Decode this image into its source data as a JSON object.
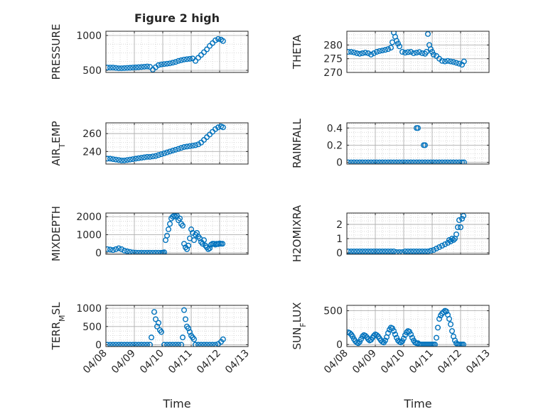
{
  "figure_title": "Figure 2 high",
  "colors": {
    "marker": "#0072BD",
    "axis": "#262626",
    "grid": "#b0b0b0",
    "background": "#ffffff"
  },
  "chart_data": [
    {
      "type": "scatter",
      "title": "Figure 2 high",
      "ylabel": "PRESSURE",
      "xlabel": "",
      "xlim": [
        0,
        5
      ],
      "ylim": [
        470,
        1060
      ],
      "yticks": [
        500,
        1000
      ],
      "grid": true,
      "xticklabels": [
        "04/08",
        "04/09",
        "04/10",
        "04/11",
        "04/12",
        "04/13"
      ],
      "x": [
        0.05,
        0.15,
        0.25,
        0.35,
        0.45,
        0.55,
        0.65,
        0.75,
        0.85,
        0.95,
        1.05,
        1.15,
        1.25,
        1.35,
        1.45,
        1.55,
        1.65,
        1.75,
        1.85,
        1.95,
        2.05,
        2.15,
        2.25,
        2.35,
        2.45,
        2.55,
        2.65,
        2.75,
        2.85,
        2.95,
        3.05,
        3.15,
        3.25,
        3.35,
        3.45,
        3.55,
        3.65,
        3.75,
        3.85,
        3.95,
        4.05,
        4.12
      ],
      "y": [
        540,
        540,
        540,
        535,
        530,
        530,
        532,
        535,
        537,
        540,
        542,
        545,
        548,
        552,
        555,
        550,
        510,
        545,
        575,
        585,
        590,
        595,
        600,
        610,
        620,
        635,
        645,
        655,
        660,
        665,
        670,
        635,
        680,
        720,
        760,
        800,
        850,
        890,
        930,
        950,
        940,
        920
      ]
    },
    {
      "type": "scatter",
      "title": "",
      "ylabel": "THETA",
      "xlabel": "",
      "xlim": [
        0,
        5
      ],
      "ylim": [
        270,
        285
      ],
      "yticks": [
        270,
        275,
        280
      ],
      "grid": true,
      "xticklabels": [
        "04/08",
        "04/09",
        "04/10",
        "04/11",
        "04/12",
        "04/13"
      ],
      "x": [
        0.05,
        0.15,
        0.25,
        0.35,
        0.45,
        0.55,
        0.65,
        0.75,
        0.85,
        0.95,
        1.05,
        1.15,
        1.25,
        1.35,
        1.45,
        1.55,
        1.6,
        1.65,
        1.7,
        1.75,
        1.8,
        1.85,
        1.95,
        2.05,
        2.15,
        2.25,
        2.35,
        2.45,
        2.55,
        2.65,
        2.75,
        2.8,
        2.85,
        2.9,
        2.95,
        3.0,
        3.05,
        3.15,
        3.25,
        3.35,
        3.45,
        3.55,
        3.65,
        3.75,
        3.85,
        3.95,
        4.05,
        4.12
      ],
      "y": [
        277.5,
        277.5,
        277.3,
        277.0,
        276.8,
        277.0,
        277.2,
        277.0,
        276.5,
        277.0,
        277.5,
        277.8,
        278.0,
        278.2,
        278.5,
        279.0,
        281.0,
        284.5,
        283.0,
        281.5,
        280.5,
        279.5,
        277.5,
        277.2,
        277.4,
        277.5,
        277.0,
        277.2,
        277.4,
        277.0,
        276.8,
        277.5,
        284.0,
        280.0,
        278.5,
        277.5,
        276.5,
        276.0,
        275.0,
        274.2,
        274.0,
        274.2,
        274.0,
        273.8,
        273.5,
        273.2,
        272.8,
        274.0
      ]
    },
    {
      "type": "scatter",
      "title": "",
      "ylabel": "AIR_TEMP",
      "xlabel": "",
      "xlim": [
        0,
        5
      ],
      "ylim": [
        226,
        272
      ],
      "yticks": [
        240,
        260
      ],
      "grid": true,
      "xticklabels": [
        "04/08",
        "04/09",
        "04/10",
        "04/11",
        "04/12",
        "04/13"
      ],
      "x": [
        0.05,
        0.15,
        0.25,
        0.35,
        0.45,
        0.55,
        0.65,
        0.75,
        0.85,
        0.95,
        1.05,
        1.15,
        1.25,
        1.35,
        1.45,
        1.55,
        1.65,
        1.75,
        1.85,
        1.95,
        2.05,
        2.15,
        2.25,
        2.35,
        2.45,
        2.55,
        2.65,
        2.75,
        2.85,
        2.95,
        3.05,
        3.15,
        3.25,
        3.35,
        3.45,
        3.55,
        3.65,
        3.75,
        3.85,
        3.95,
        4.05,
        4.12
      ],
      "y": [
        232,
        232,
        231.5,
        231,
        230.5,
        230,
        230,
        230.5,
        231,
        231.5,
        232,
        232.5,
        233,
        233.5,
        234,
        234,
        234.5,
        235,
        236,
        237,
        238,
        239,
        240,
        241,
        242,
        243,
        244,
        245,
        245.5,
        246,
        246.5,
        247,
        248,
        250,
        253,
        256,
        259,
        262,
        265,
        267,
        268,
        267
      ]
    },
    {
      "type": "scatter",
      "title": "",
      "ylabel": "RAINFALL",
      "xlabel": "",
      "xlim": [
        0,
        5
      ],
      "ylim": [
        -0.02,
        0.46
      ],
      "yticks": [
        0,
        0.2,
        0.4
      ],
      "grid": true,
      "xticklabels": [
        "04/08",
        "04/09",
        "04/10",
        "04/11",
        "04/12",
        "04/13"
      ],
      "x": [
        0.05,
        0.15,
        0.25,
        0.35,
        0.45,
        0.55,
        0.65,
        0.75,
        0.85,
        0.95,
        1.05,
        1.15,
        1.25,
        1.35,
        1.45,
        1.55,
        1.65,
        1.75,
        1.85,
        1.95,
        2.05,
        2.15,
        2.25,
        2.35,
        2.45,
        2.55,
        2.65,
        2.75,
        2.85,
        2.95,
        3.05,
        3.15,
        3.25,
        3.35,
        3.45,
        3.55,
        3.65,
        3.75,
        3.85,
        3.95,
        4.05,
        4.12,
        2.45,
        2.5,
        2.7,
        2.75
      ],
      "y": [
        0,
        0,
        0,
        0,
        0,
        0,
        0,
        0,
        0,
        0,
        0,
        0,
        0,
        0,
        0,
        0,
        0,
        0,
        0,
        0,
        0,
        0,
        0,
        0,
        0,
        0,
        0,
        0,
        0,
        0,
        0,
        0,
        0,
        0,
        0,
        0,
        0,
        0,
        0,
        0,
        0,
        0,
        0.4,
        0.4,
        0.2,
        0.2
      ]
    },
    {
      "type": "scatter",
      "title": "",
      "ylabel": "MIXDEPTH",
      "xlabel": "",
      "xlim": [
        0,
        5
      ],
      "ylim": [
        -80,
        2200
      ],
      "yticks": [
        0,
        1000,
        2000
      ],
      "grid": true,
      "xticklabels": [
        "04/08",
        "04/09",
        "04/10",
        "04/11",
        "04/12",
        "04/13"
      ],
      "x": [
        0.05,
        0.15,
        0.25,
        0.35,
        0.45,
        0.55,
        0.65,
        0.75,
        0.85,
        0.95,
        1.05,
        1.15,
        1.25,
        1.35,
        1.45,
        1.55,
        1.65,
        1.75,
        1.85,
        1.95,
        2.0,
        2.05,
        2.1,
        2.15,
        2.2,
        2.25,
        2.3,
        2.35,
        2.4,
        2.45,
        2.5,
        2.55,
        2.6,
        2.65,
        2.7,
        2.75,
        2.8,
        2.85,
        2.9,
        2.95,
        3.0,
        3.05,
        3.1,
        3.15,
        3.2,
        3.25,
        3.3,
        3.35,
        3.4,
        3.45,
        3.5,
        3.55,
        3.6,
        3.65,
        3.7,
        3.75,
        3.8,
        3.85,
        3.9,
        3.95,
        4.0,
        4.05,
        4.1
      ],
      "y": [
        200,
        180,
        150,
        200,
        250,
        200,
        120,
        80,
        50,
        20,
        10,
        5,
        5,
        5,
        5,
        5,
        5,
        5,
        5,
        5,
        10,
        30,
        700,
        950,
        1300,
        1600,
        1900,
        2000,
        2050,
        2000,
        2050,
        1800,
        1900,
        1600,
        1500,
        500,
        300,
        200,
        400,
        800,
        1300,
        1100,
        700,
        1000,
        1100,
        900,
        800,
        600,
        500,
        700,
        400,
        300,
        200,
        250,
        450,
        500,
        500,
        450,
        500,
        480,
        520,
        500,
        500
      ]
    },
    {
      "type": "scatter",
      "title": "",
      "ylabel": "H2OMIXRA",
      "xlabel": "",
      "xlim": [
        0,
        5
      ],
      "ylim": [
        -0.1,
        2.8
      ],
      "yticks": [
        0,
        1,
        2
      ],
      "grid": true,
      "xticklabels": [
        "04/08",
        "04/09",
        "04/10",
        "04/11",
        "04/12",
        "04/13"
      ],
      "x": [
        0.05,
        0.15,
        0.25,
        0.35,
        0.45,
        0.55,
        0.65,
        0.75,
        0.85,
        0.95,
        1.05,
        1.15,
        1.25,
        1.35,
        1.45,
        1.55,
        1.65,
        1.75,
        1.85,
        1.95,
        2.05,
        2.15,
        2.25,
        2.35,
        2.45,
        2.55,
        2.65,
        2.75,
        2.85,
        2.95,
        3.05,
        3.15,
        3.25,
        3.35,
        3.45,
        3.55,
        3.6,
        3.65,
        3.7,
        3.75,
        3.8,
        3.85,
        3.9,
        3.95,
        4.0,
        4.05,
        4.1
      ],
      "y": [
        0.1,
        0.1,
        0.1,
        0.1,
        0.1,
        0.1,
        0.1,
        0.1,
        0.1,
        0.1,
        0.1,
        0.1,
        0.1,
        0.1,
        0.1,
        0.1,
        0.1,
        0.05,
        0.05,
        0.05,
        0.1,
        0.1,
        0.1,
        0.1,
        0.1,
        0.1,
        0.1,
        0.1,
        0.1,
        0.15,
        0.2,
        0.3,
        0.4,
        0.5,
        0.6,
        0.7,
        0.9,
        0.8,
        1.0,
        0.9,
        1.0,
        1.3,
        1.8,
        2.3,
        1.8,
        2.4,
        2.6
      ]
    },
    {
      "type": "scatter",
      "title": "",
      "ylabel": "TERR_MSL",
      "xlabel": "Time",
      "xlim": [
        0,
        5
      ],
      "ylim": [
        -50,
        1080
      ],
      "yticks": [
        0,
        500,
        1000
      ],
      "grid": true,
      "xticklabels": [
        "04/08",
        "04/09",
        "04/10",
        "04/11",
        "04/12",
        "04/13"
      ],
      "x": [
        0.05,
        0.15,
        0.25,
        0.35,
        0.45,
        0.55,
        0.65,
        0.75,
        0.85,
        0.95,
        1.05,
        1.15,
        1.25,
        1.35,
        1.45,
        1.55,
        1.6,
        1.7,
        1.75,
        1.8,
        1.85,
        1.9,
        1.95,
        2.05,
        2.15,
        2.25,
        2.35,
        2.45,
        2.55,
        2.65,
        2.7,
        2.75,
        2.8,
        2.85,
        2.9,
        2.95,
        3.0,
        3.05,
        3.1,
        3.15,
        3.25,
        3.35,
        3.45,
        3.55,
        3.65,
        3.75,
        3.85,
        3.95,
        4.05,
        4.12
      ],
      "y": [
        0,
        0,
        0,
        0,
        0,
        0,
        0,
        0,
        0,
        0,
        0,
        0,
        0,
        0,
        0,
        0,
        200,
        900,
        700,
        500,
        600,
        400,
        350,
        0,
        0,
        0,
        0,
        0,
        0,
        0,
        200,
        950,
        700,
        500,
        450,
        350,
        250,
        200,
        150,
        0,
        0,
        0,
        0,
        0,
        0,
        0,
        0,
        20,
        80,
        150
      ]
    },
    {
      "type": "scatter",
      "title": "",
      "ylabel": "SUN_FLUX",
      "xlabel": "Time",
      "xlim": [
        0,
        5
      ],
      "ylim": [
        -30,
        580
      ],
      "yticks": [
        0,
        500
      ],
      "grid": true,
      "xticklabels": [
        "04/08",
        "04/09",
        "04/10",
        "04/11",
        "04/12",
        "04/13"
      ],
      "x": [
        0.05,
        0.1,
        0.15,
        0.2,
        0.25,
        0.3,
        0.35,
        0.4,
        0.45,
        0.5,
        0.55,
        0.6,
        0.65,
        0.7,
        0.75,
        0.8,
        0.85,
        0.9,
        0.95,
        1.0,
        1.05,
        1.1,
        1.15,
        1.2,
        1.25,
        1.3,
        1.35,
        1.4,
        1.45,
        1.5,
        1.55,
        1.6,
        1.65,
        1.7,
        1.75,
        1.8,
        1.85,
        1.9,
        1.95,
        2.0,
        2.05,
        2.1,
        2.15,
        2.2,
        2.25,
        2.3,
        2.35,
        2.4,
        2.45,
        2.5,
        2.55,
        2.6,
        2.65,
        2.7,
        2.75,
        2.8,
        2.85,
        2.9,
        2.95,
        3.0,
        3.05,
        3.1,
        3.15,
        3.2,
        3.25,
        3.3,
        3.35,
        3.4,
        3.45,
        3.5,
        3.55,
        3.6,
        3.65,
        3.7,
        3.75,
        3.8,
        3.85,
        3.9,
        3.95,
        4.0,
        4.05,
        4.1
      ],
      "y": [
        180,
        170,
        150,
        120,
        80,
        50,
        30,
        20,
        40,
        80,
        120,
        140,
        130,
        110,
        80,
        60,
        70,
        100,
        130,
        150,
        140,
        120,
        90,
        60,
        40,
        30,
        60,
        110,
        170,
        220,
        250,
        240,
        200,
        150,
        100,
        60,
        40,
        30,
        50,
        90,
        140,
        180,
        200,
        190,
        150,
        100,
        60,
        30,
        20,
        20,
        0,
        0,
        0,
        0,
        0,
        0,
        0,
        0,
        0,
        0,
        0,
        0,
        100,
        250,
        380,
        430,
        460,
        480,
        500,
        490,
        440,
        380,
        300,
        200,
        120,
        60,
        20,
        0,
        0,
        0,
        0,
        0
      ]
    }
  ]
}
